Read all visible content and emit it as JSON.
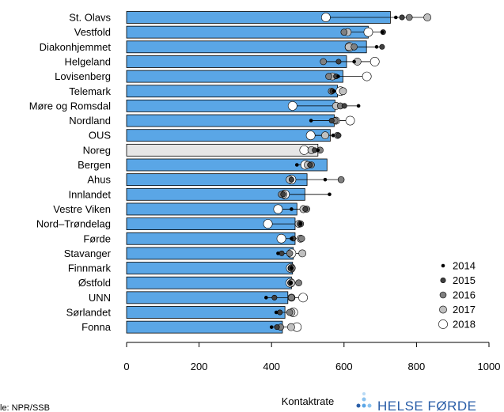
{
  "chart_data": {
    "type": "bar",
    "orientation": "horizontal",
    "title": "",
    "xlabel": "Kontaktrate",
    "ylabel": "",
    "xlim": [
      0,
      1000
    ],
    "xticks": [
      0,
      200,
      400,
      600,
      800,
      1000
    ],
    "categories": [
      "St. Olavs",
      "Vestfold",
      "Diakonhjemmet",
      "Helgeland",
      "Lovisenberg",
      "Telemark",
      "Møre og Romsdal",
      "Nordland",
      "OUS",
      "Noreg",
      "Bergen",
      "Ahus",
      "Innlandet",
      "Vestre Viken",
      "Nord–Trøndelag",
      "Førde",
      "Stavanger",
      "Finnmark",
      "Østfold",
      "UNN",
      "Sørlandet",
      "Fonna"
    ],
    "bar_values": [
      728,
      667,
      662,
      607,
      597,
      582,
      575,
      573,
      562,
      528,
      553,
      498,
      492,
      470,
      465,
      465,
      460,
      458,
      455,
      445,
      437,
      430
    ],
    "highlight_category": "Noreg",
    "bar_color": "#5aa6e6",
    "highlight_color": "#e6e6e6",
    "series": [
      {
        "name": "2014",
        "values": [
          743,
          706,
          690,
          628,
          584,
          572,
          640,
          509,
          570,
          528,
          470,
          548,
          560,
          455,
          480,
          455,
          418,
          455,
          453,
          385,
          413,
          400
        ]
      },
      {
        "name": "2015",
        "values": [
          760,
          708,
          705,
          585,
          578,
          568,
          601,
          566,
          585,
          519,
          506,
          455,
          432,
          493,
          478,
          460,
          428,
          453,
          451,
          408,
          423,
          415
        ]
      },
      {
        "name": "2016",
        "values": [
          780,
          600,
          628,
          543,
          558,
          565,
          590,
          575,
          582,
          534,
          510,
          592,
          427,
          497,
          480,
          483,
          450,
          457,
          475,
          455,
          450,
          425
        ]
      },
      {
        "name": "2017",
        "values": [
          830,
          610,
          613,
          637,
          568,
          597,
          578,
          578,
          548,
          510,
          500,
          450,
          433,
          488,
          475,
          480,
          485,
          455,
          455,
          455,
          455,
          454
        ]
      },
      {
        "name": "2018",
        "values": [
          550,
          667,
          615,
          685,
          663,
          590,
          458,
          617,
          508,
          490,
          493,
          455,
          437,
          418,
          390,
          427,
          455,
          453,
          452,
          487,
          460,
          470
        ]
      }
    ],
    "series_colors": [
      "#000000",
      "#404040",
      "#808080",
      "#c0c0c0",
      "#ffffff"
    ],
    "legend_position": "right",
    "grid": false
  },
  "footer": {
    "source_text": "le: NPR/SSB",
    "logo_text": "HELSE FØRDE"
  }
}
